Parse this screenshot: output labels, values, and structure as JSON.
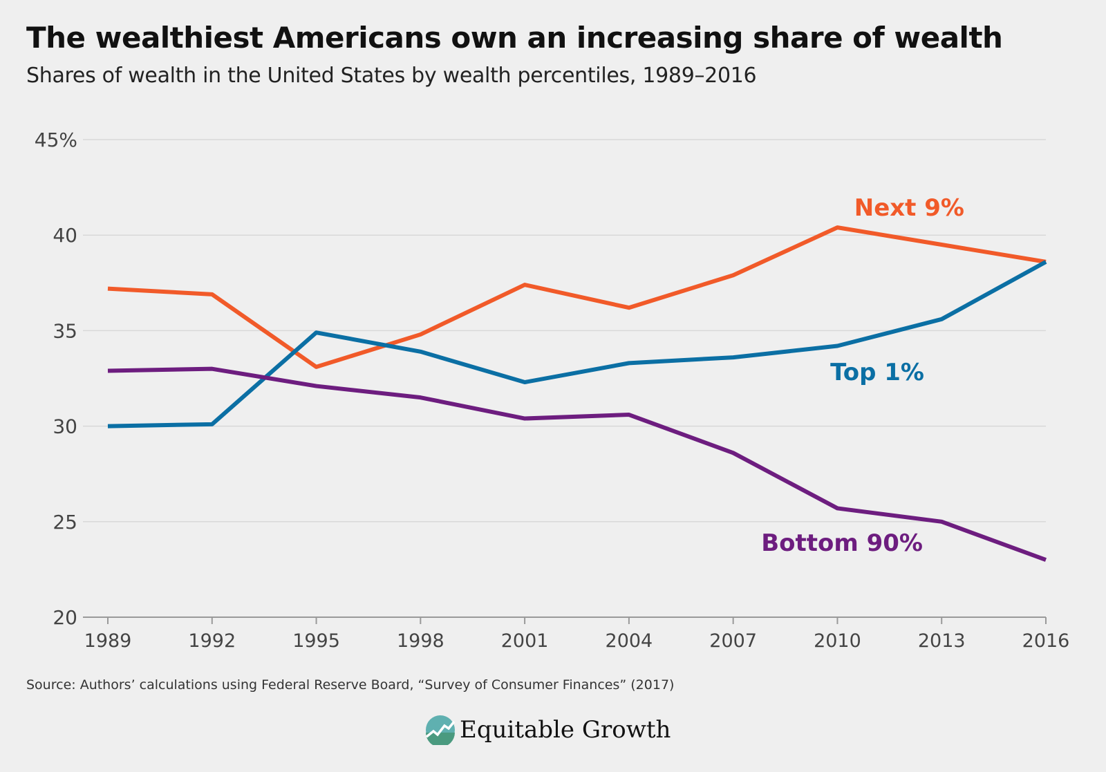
{
  "header": {
    "title": "The wealthiest Americans own an increasing share of wealth",
    "subtitle": "Shares of wealth in the United States by wealth percentiles, 1989–2016"
  },
  "footer": {
    "source": "Source: Authors’ calculations using Federal Reserve Board, “Survey of Consumer Finances” (2017)",
    "logo_text": "Equitable Growth"
  },
  "chart_data": {
    "type": "line",
    "title": "The wealthiest Americans own an increasing share of wealth",
    "subtitle": "Shares of wealth in the United States by wealth percentiles, 1989–2016",
    "xlabel": "",
    "ylabel": "",
    "x": [
      1989,
      1992,
      1995,
      1998,
      2001,
      2004,
      2007,
      2010,
      2013,
      2016
    ],
    "x_tick_labels": [
      "1989",
      "1992",
      "1995",
      "1998",
      "2001",
      "2004",
      "2007",
      "2010",
      "2013",
      "2016"
    ],
    "ylim": [
      20,
      45
    ],
    "y_ticks": [
      20,
      25,
      30,
      35,
      40,
      45
    ],
    "y_tick_labels": [
      "20",
      "25",
      "30",
      "35",
      "40",
      "45%"
    ],
    "grid": "horizontal",
    "legend": "inline labels",
    "series": [
      {
        "name": "Next 9%",
        "color": "#f15a29",
        "values": [
          37.2,
          36.9,
          33.1,
          34.8,
          37.4,
          36.2,
          37.9,
          40.4,
          39.5,
          38.6
        ]
      },
      {
        "name": "Top 1%",
        "color": "#0b6fa4",
        "values": [
          30.0,
          30.1,
          34.9,
          33.9,
          32.3,
          33.3,
          33.6,
          34.2,
          35.6,
          38.6
        ]
      },
      {
        "name": "Bottom 90%",
        "color": "#6d1d7f",
        "values": [
          32.9,
          33.0,
          32.1,
          31.5,
          30.4,
          30.6,
          28.6,
          25.7,
          25.0,
          23.0
        ]
      }
    ]
  }
}
